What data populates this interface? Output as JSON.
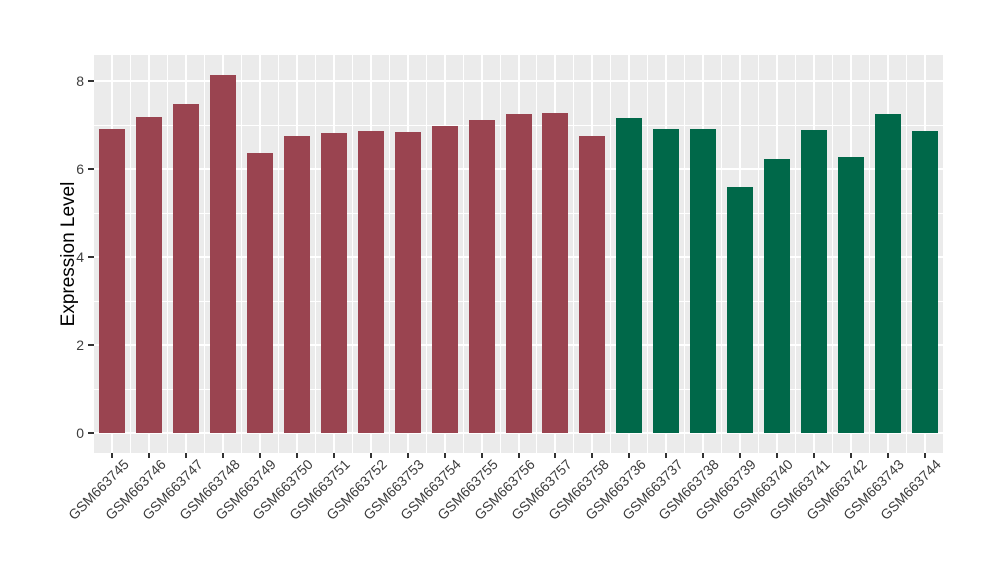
{
  "figure": {
    "background": "#FFFFFF",
    "panel_background": "#EBEBEB",
    "grid_color": "#FFFFFF",
    "tick_color": "#333333",
    "axis_text_color": "#3D3D3D",
    "axis_title_color": "#000000"
  },
  "chart_data": {
    "type": "bar",
    "title": "",
    "xlabel": "",
    "ylabel": "Expression Level",
    "ylim": [
      0,
      8.59
    ],
    "y_major_ticks": [
      0,
      2,
      4,
      6,
      8
    ],
    "y_minor_gridlines": [
      1,
      3,
      5,
      7
    ],
    "grid": "white major and minor gridlines on gray panel (ggplot style)",
    "legend_position": "none",
    "x_label_angle_degrees": 45,
    "bar_width_fraction": 0.71,
    "groups": {
      "group1": {
        "color": "#9A4450"
      },
      "group2": {
        "color": "#006849"
      }
    },
    "categories": [
      "GSM663745",
      "GSM663746",
      "GSM663747",
      "GSM663748",
      "GSM663749",
      "GSM663750",
      "GSM663751",
      "GSM663752",
      "GSM663753",
      "GSM663754",
      "GSM663755",
      "GSM663756",
      "GSM663757",
      "GSM663758",
      "GSM663736",
      "GSM663737",
      "GSM663738",
      "GSM663739",
      "GSM663740",
      "GSM663741",
      "GSM663742",
      "GSM663743",
      "GSM663744"
    ],
    "bars": [
      {
        "label": "GSM663745",
        "value": 6.92,
        "group": "group1"
      },
      {
        "label": "GSM663746",
        "value": 7.19,
        "group": "group1"
      },
      {
        "label": "GSM663747",
        "value": 7.47,
        "group": "group1"
      },
      {
        "label": "GSM663748",
        "value": 8.14,
        "group": "group1"
      },
      {
        "label": "GSM663749",
        "value": 6.37,
        "group": "group1"
      },
      {
        "label": "GSM663750",
        "value": 6.76,
        "group": "group1"
      },
      {
        "label": "GSM663751",
        "value": 6.81,
        "group": "group1"
      },
      {
        "label": "GSM663752",
        "value": 6.87,
        "group": "group1"
      },
      {
        "label": "GSM663753",
        "value": 6.84,
        "group": "group1"
      },
      {
        "label": "GSM663754",
        "value": 6.98,
        "group": "group1"
      },
      {
        "label": "GSM663755",
        "value": 7.12,
        "group": "group1"
      },
      {
        "label": "GSM663756",
        "value": 7.25,
        "group": "group1"
      },
      {
        "label": "GSM663757",
        "value": 7.28,
        "group": "group1"
      },
      {
        "label": "GSM663758",
        "value": 6.76,
        "group": "group1"
      },
      {
        "label": "GSM663736",
        "value": 7.17,
        "group": "group2"
      },
      {
        "label": "GSM663737",
        "value": 6.9,
        "group": "group2"
      },
      {
        "label": "GSM663738",
        "value": 6.91,
        "group": "group2"
      },
      {
        "label": "GSM663739",
        "value": 5.6,
        "group": "group2"
      },
      {
        "label": "GSM663740",
        "value": 6.23,
        "group": "group2"
      },
      {
        "label": "GSM663741",
        "value": 6.89,
        "group": "group2"
      },
      {
        "label": "GSM663742",
        "value": 6.28,
        "group": "group2"
      },
      {
        "label": "GSM663743",
        "value": 7.26,
        "group": "group2"
      },
      {
        "label": "GSM663744",
        "value": 6.87,
        "group": "group2"
      }
    ]
  }
}
